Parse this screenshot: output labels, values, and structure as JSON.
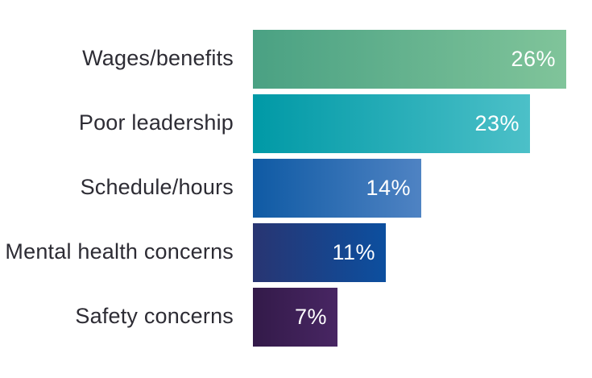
{
  "chart_data": {
    "type": "bar",
    "orientation": "horizontal",
    "title": "",
    "xlabel": "",
    "ylabel": "",
    "legend": false,
    "grid": false,
    "axes_visible": false,
    "background_color": "#ffffff",
    "category_label_color": "#2d2c34",
    "value_label_color": "#ffffff",
    "categories": [
      "Wages/benefits",
      "Poor leadership",
      "Schedule/hours",
      "Mental health concerns",
      "Safety concerns"
    ],
    "values": [
      26,
      23,
      14,
      11,
      7
    ],
    "value_labels": [
      "26%",
      "23%",
      "14%",
      "11%",
      "7%"
    ],
    "bar_colors": [
      {
        "from": "#4aa183",
        "to": "#80c49a"
      },
      {
        "from": "#0099a6",
        "to": "#4cc0c8"
      },
      {
        "from": "#0f5aa4",
        "to": "#4f83c3"
      },
      {
        "from": "#283572",
        "to": "#0c4f9f"
      },
      {
        "from": "#331a49",
        "to": "#482663"
      }
    ]
  }
}
